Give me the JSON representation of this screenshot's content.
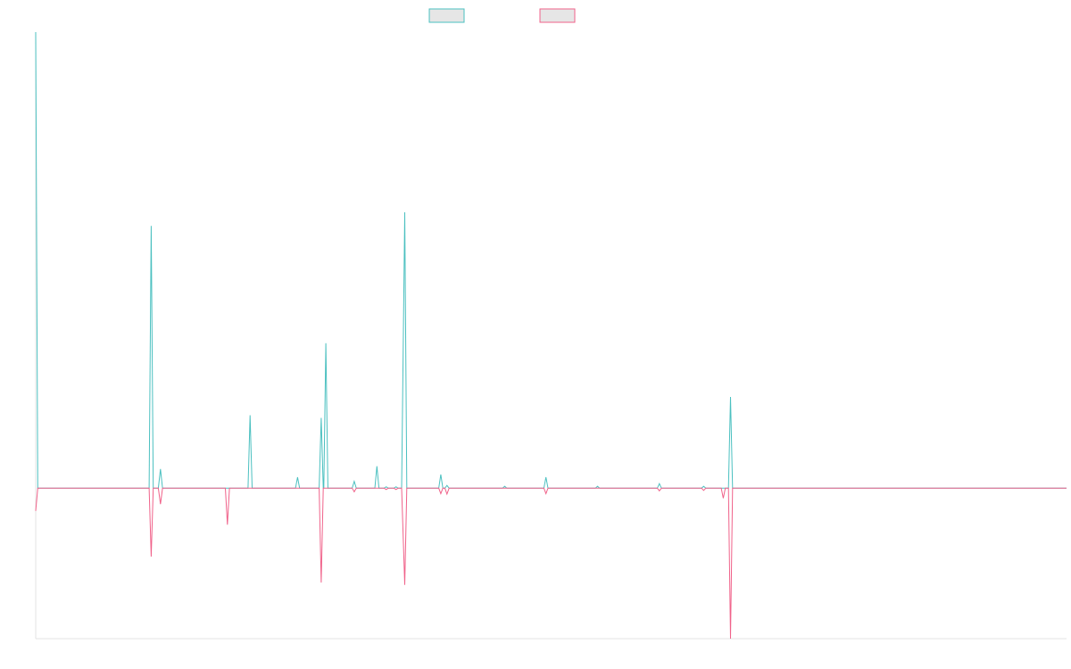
{
  "chart_data": {
    "type": "line",
    "title": "",
    "xlabel": "",
    "ylabel": "",
    "x_range": [
      0,
      100
    ],
    "ylim": [
      -330,
      1000
    ],
    "grid": false,
    "legend": "top-center",
    "series": [
      {
        "color": "#4bc0c0",
        "points": [
          [
            0,
            1000
          ],
          [
            0.2,
            0
          ],
          [
            11.0,
            0
          ],
          [
            11.2,
            575
          ],
          [
            11.4,
            0
          ],
          [
            11.9,
            0
          ],
          [
            12.1,
            42
          ],
          [
            12.3,
            0
          ],
          [
            20.6,
            0
          ],
          [
            20.8,
            160
          ],
          [
            21.0,
            0
          ],
          [
            25.2,
            0
          ],
          [
            25.4,
            24
          ],
          [
            25.6,
            0
          ],
          [
            27.5,
            0
          ],
          [
            27.7,
            154
          ],
          [
            27.9,
            0
          ],
          [
            27.95,
            0
          ],
          [
            28.15,
            318
          ],
          [
            28.35,
            0
          ],
          [
            30.7,
            0
          ],
          [
            30.9,
            15
          ],
          [
            31.1,
            0
          ],
          [
            32.9,
            0
          ],
          [
            33.1,
            48
          ],
          [
            33.3,
            0
          ],
          [
            33.8,
            0
          ],
          [
            34.0,
            3
          ],
          [
            34.2,
            0
          ],
          [
            34.75,
            0
          ],
          [
            34.95,
            3
          ],
          [
            35.15,
            0
          ],
          [
            35.5,
            0
          ],
          [
            35.8,
            605
          ],
          [
            36.0,
            0
          ],
          [
            39.1,
            0
          ],
          [
            39.3,
            30
          ],
          [
            39.5,
            0
          ],
          [
            39.7,
            0
          ],
          [
            39.9,
            6
          ],
          [
            40.1,
            0
          ],
          [
            45.3,
            0
          ],
          [
            45.5,
            4
          ],
          [
            45.7,
            0
          ],
          [
            49.3,
            0
          ],
          [
            49.5,
            24
          ],
          [
            49.7,
            0
          ],
          [
            54.3,
            0
          ],
          [
            54.5,
            4
          ],
          [
            54.7,
            0
          ],
          [
            60.3,
            0
          ],
          [
            60.5,
            10
          ],
          [
            60.7,
            0
          ],
          [
            64.6,
            0
          ],
          [
            64.8,
            4
          ],
          [
            65.0,
            0
          ],
          [
            67.2,
            0
          ],
          [
            67.4,
            200
          ],
          [
            67.6,
            0
          ],
          [
            100,
            0
          ]
        ]
      },
      {
        "color": "#f0628a",
        "points": [
          [
            0,
            -50
          ],
          [
            0.2,
            0
          ],
          [
            11.0,
            0
          ],
          [
            11.2,
            -150
          ],
          [
            11.4,
            0
          ],
          [
            11.9,
            0
          ],
          [
            12.1,
            -35
          ],
          [
            12.3,
            0
          ],
          [
            18.4,
            0
          ],
          [
            18.6,
            -80
          ],
          [
            18.8,
            0
          ],
          [
            27.5,
            0
          ],
          [
            27.7,
            -207
          ],
          [
            27.9,
            0
          ],
          [
            30.7,
            0
          ],
          [
            30.9,
            -8
          ],
          [
            31.1,
            0
          ],
          [
            33.8,
            0
          ],
          [
            34.0,
            -3
          ],
          [
            34.2,
            0
          ],
          [
            34.75,
            0
          ],
          [
            34.95,
            -3
          ],
          [
            35.15,
            0
          ],
          [
            35.5,
            0
          ],
          [
            35.8,
            -212
          ],
          [
            36.0,
            0
          ],
          [
            39.1,
            0
          ],
          [
            39.3,
            -12
          ],
          [
            39.5,
            0
          ],
          [
            39.7,
            0
          ],
          [
            39.9,
            -13
          ],
          [
            40.1,
            0
          ],
          [
            49.3,
            0
          ],
          [
            49.5,
            -12
          ],
          [
            49.7,
            0
          ],
          [
            60.3,
            0
          ],
          [
            60.5,
            -6
          ],
          [
            60.7,
            0
          ],
          [
            64.6,
            0
          ],
          [
            64.8,
            -5
          ],
          [
            65.0,
            0
          ],
          [
            66.5,
            0
          ],
          [
            66.7,
            -22
          ],
          [
            66.9,
            0
          ],
          [
            67.2,
            0
          ],
          [
            67.4,
            -330
          ],
          [
            67.6,
            0
          ],
          [
            100,
            0
          ]
        ]
      }
    ]
  }
}
